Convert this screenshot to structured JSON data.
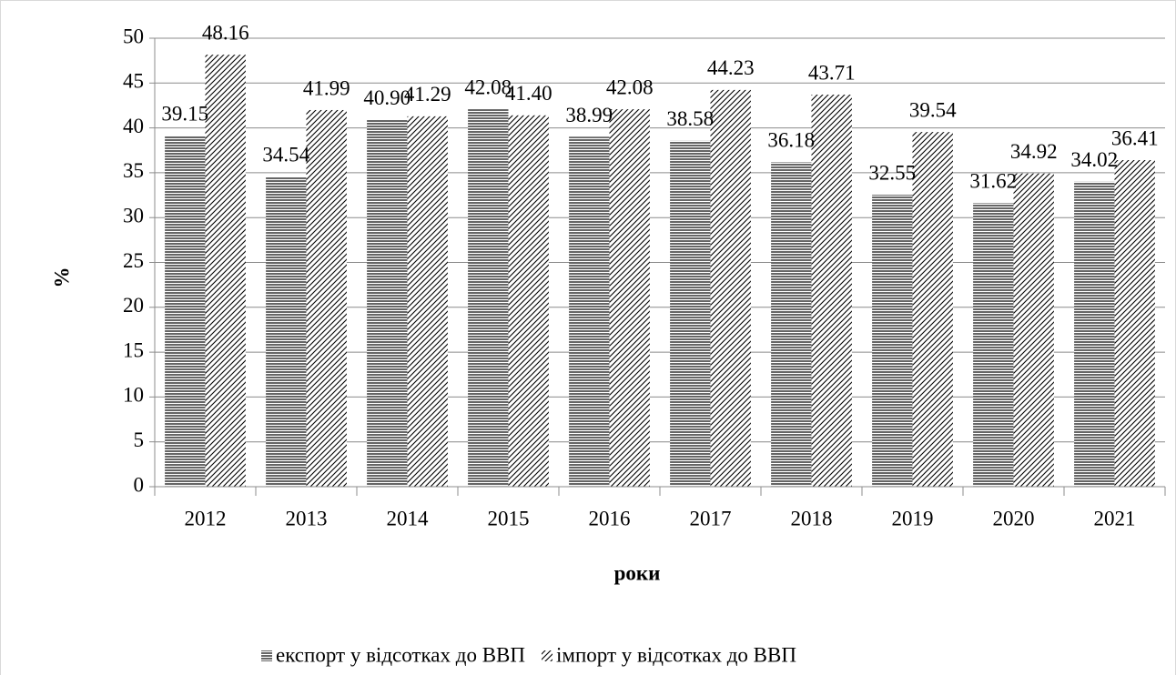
{
  "chart_data": {
    "type": "bar",
    "xlabel": "роки",
    "ylabel": "%",
    "categories": [
      "2012",
      "2013",
      "2014",
      "2015",
      "2016",
      "2017",
      "2018",
      "2019",
      "2020",
      "2021"
    ],
    "series": [
      {
        "name": "експорт у відсотках до ВВП",
        "color": "#000000",
        "pattern": "horizontal",
        "values": [
          39.15,
          34.54,
          40.9,
          42.08,
          38.99,
          38.58,
          36.18,
          32.55,
          31.62,
          34.02
        ],
        "value_labels": [
          "39.15",
          "34.54",
          "40.90",
          "42.08",
          "38.99",
          "38.58",
          "36.18",
          "32.55",
          "31.62",
          "34.02"
        ]
      },
      {
        "name": "імпорт у відсотках до ВВП",
        "color": "#000000",
        "pattern": "diagonal",
        "values": [
          48.16,
          41.99,
          41.29,
          41.4,
          42.08,
          44.23,
          43.71,
          39.54,
          34.92,
          36.41
        ],
        "value_labels": [
          "48.16",
          "41.99",
          "41.29",
          "41.40",
          "42.08",
          "44.23",
          "43.71",
          "39.54",
          "34.92",
          "36.41"
        ]
      }
    ],
    "ylim": [
      0,
      50
    ],
    "yticks": [
      0,
      5,
      10,
      15,
      20,
      25,
      30,
      35,
      40,
      45,
      50
    ],
    "grid": true,
    "legend": "bottom"
  }
}
